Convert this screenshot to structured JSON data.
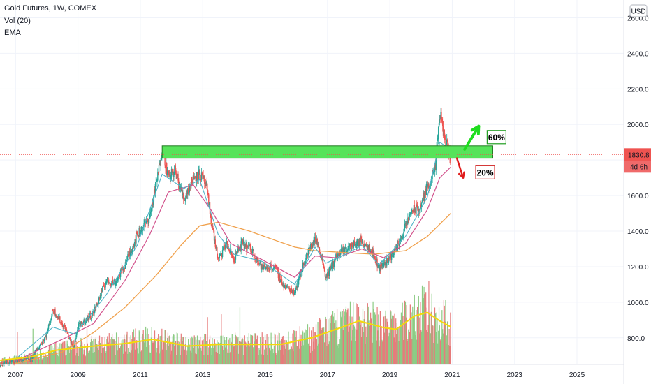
{
  "legend": {
    "title": "Gold Futures, 1W, COMEX",
    "volume": "Vol (20)",
    "ema": "EMA"
  },
  "currency_button": "USD",
  "price_tag": {
    "value": "1830.8",
    "countdown": "4d 6h"
  },
  "colors": {
    "up": "#26a69a",
    "down": "#ef5350",
    "vol_up": "#8ccb84",
    "vol_down": "#e67b7b",
    "ema_fast": "#4fb3c8",
    "ema_mid": "#d2528c",
    "ema_slow": "#f0a04b",
    "vol_ma": "#f5d90a",
    "zone_fill": "#57e35a",
    "arrow_up": "#1fdc1f",
    "arrow_down": "#e01b1b"
  },
  "annotations": {
    "up_label": "60%",
    "down_label": "20%"
  },
  "chart_data": {
    "type": "candlestick",
    "title": "Gold Futures, 1W, COMEX",
    "ylim": [
      650,
      2700
    ],
    "xlim": [
      2006.5,
      2026.5
    ],
    "ytick_labels": [
      "800.0",
      "1000.0",
      "1200.0",
      "1400.0",
      "1600.0",
      "1800.0",
      "2000.0",
      "2200.0",
      "2400.0",
      "2600.0"
    ],
    "yticks": [
      800,
      1000,
      1200,
      1400,
      1600,
      1800,
      2000,
      2200,
      2400,
      2600
    ],
    "xtick_labels": [
      "2007",
      "2009",
      "2011",
      "2013",
      "2015",
      "2017",
      "2019",
      "2021",
      "2023",
      "2025"
    ],
    "xticks": [
      2007,
      2009,
      2011,
      2013,
      2015,
      2017,
      2019,
      2021,
      2023,
      2025
    ],
    "price_path": [
      [
        2006.5,
        650
      ],
      [
        2007.0,
        670
      ],
      [
        2007.5,
        680
      ],
      [
        2008.0,
        820
      ],
      [
        2008.2,
        960
      ],
      [
        2008.6,
        850
      ],
      [
        2008.85,
        740
      ],
      [
        2009.0,
        860
      ],
      [
        2009.5,
        940
      ],
      [
        2009.9,
        1120
      ],
      [
        2010.2,
        1110
      ],
      [
        2010.5,
        1210
      ],
      [
        2010.9,
        1380
      ],
      [
        2011.3,
        1480
      ],
      [
        2011.6,
        1750
      ],
      [
        2011.7,
        1880
      ],
      [
        2011.9,
        1700
      ],
      [
        2012.1,
        1740
      ],
      [
        2012.4,
        1580
      ],
      [
        2012.7,
        1700
      ],
      [
        2012.9,
        1720
      ],
      [
        2013.1,
        1660
      ],
      [
        2013.3,
        1430
      ],
      [
        2013.5,
        1230
      ],
      [
        2013.75,
        1330
      ],
      [
        2014.0,
        1240
      ],
      [
        2014.25,
        1330
      ],
      [
        2014.6,
        1290
      ],
      [
        2014.9,
        1190
      ],
      [
        2015.3,
        1200
      ],
      [
        2015.6,
        1090
      ],
      [
        2015.95,
        1060
      ],
      [
        2016.3,
        1250
      ],
      [
        2016.6,
        1360
      ],
      [
        2016.8,
        1270
      ],
      [
        2016.95,
        1140
      ],
      [
        2017.3,
        1260
      ],
      [
        2017.7,
        1310
      ],
      [
        2018.1,
        1345
      ],
      [
        2018.4,
        1300
      ],
      [
        2018.65,
        1190
      ],
      [
        2018.9,
        1230
      ],
      [
        2019.2,
        1300
      ],
      [
        2019.5,
        1420
      ],
      [
        2019.7,
        1520
      ],
      [
        2019.95,
        1520
      ],
      [
        2020.2,
        1650
      ],
      [
        2020.45,
        1740
      ],
      [
        2020.6,
        2060
      ],
      [
        2020.75,
        1930
      ],
      [
        2020.85,
        1860
      ],
      [
        2020.95,
        1830.8
      ]
    ],
    "ema_fast": [
      [
        2007.0,
        680
      ],
      [
        2008.2,
        860
      ],
      [
        2008.9,
        820
      ],
      [
        2009.9,
        1040
      ],
      [
        2010.9,
        1320
      ],
      [
        2011.7,
        1720
      ],
      [
        2012.4,
        1640
      ],
      [
        2012.9,
        1690
      ],
      [
        2013.5,
        1380
      ],
      [
        2014.0,
        1270
      ],
      [
        2014.9,
        1230
      ],
      [
        2015.95,
        1100
      ],
      [
        2016.6,
        1310
      ],
      [
        2016.95,
        1220
      ],
      [
        2017.7,
        1280
      ],
      [
        2018.1,
        1320
      ],
      [
        2018.65,
        1210
      ],
      [
        2019.5,
        1370
      ],
      [
        2020.2,
        1590
      ],
      [
        2020.6,
        1900
      ],
      [
        2020.95,
        1860
      ]
    ],
    "ema_mid": [
      [
        2007.0,
        670
      ],
      [
        2008.6,
        800
      ],
      [
        2009.5,
        880
      ],
      [
        2010.5,
        1120
      ],
      [
        2011.3,
        1380
      ],
      [
        2011.9,
        1620
      ],
      [
        2012.7,
        1660
      ],
      [
        2013.3,
        1510
      ],
      [
        2013.9,
        1330
      ],
      [
        2014.9,
        1240
      ],
      [
        2015.95,
        1140
      ],
      [
        2016.6,
        1260
      ],
      [
        2017.3,
        1250
      ],
      [
        2018.1,
        1300
      ],
      [
        2018.8,
        1250
      ],
      [
        2019.5,
        1330
      ],
      [
        2020.2,
        1520
      ],
      [
        2020.6,
        1700
      ],
      [
        2020.95,
        1760
      ]
    ],
    "ema_slow": [
      [
        2007.0,
        655
      ],
      [
        2008.5,
        720
      ],
      [
        2009.5,
        830
      ],
      [
        2010.5,
        970
      ],
      [
        2011.5,
        1150
      ],
      [
        2012.3,
        1320
      ],
      [
        2012.9,
        1430
      ],
      [
        2013.5,
        1450
      ],
      [
        2014.5,
        1400
      ],
      [
        2015.3,
        1350
      ],
      [
        2015.95,
        1310
      ],
      [
        2016.6,
        1290
      ],
      [
        2017.5,
        1280
      ],
      [
        2018.5,
        1270
      ],
      [
        2019.5,
        1290
      ],
      [
        2020.2,
        1370
      ],
      [
        2020.95,
        1500
      ]
    ],
    "volume_ma": [
      [
        2006.5,
        0.05
      ],
      [
        2007.5,
        0.09
      ],
      [
        2008.3,
        0.17
      ],
      [
        2009.5,
        0.22
      ],
      [
        2010.5,
        0.25
      ],
      [
        2011.4,
        0.3
      ],
      [
        2012.5,
        0.22
      ],
      [
        2013.5,
        0.24
      ],
      [
        2014.5,
        0.24
      ],
      [
        2015.5,
        0.24
      ],
      [
        2016.5,
        0.32
      ],
      [
        2017.5,
        0.45
      ],
      [
        2018.0,
        0.52
      ],
      [
        2018.8,
        0.44
      ],
      [
        2019.2,
        0.42
      ],
      [
        2019.8,
        0.58
      ],
      [
        2020.2,
        0.62
      ],
      [
        2020.6,
        0.52
      ],
      [
        2020.95,
        0.45
      ]
    ],
    "resistance_zone": {
      "x": [
        2011.7,
        2022.3
      ],
      "y": [
        1810,
        1880
      ]
    },
    "last_price": 1830.8,
    "arrows": [
      {
        "label": "60%",
        "direction": "up",
        "x": [
          2021.4,
          2021.85
        ],
        "y": [
          1860,
          1990
        ]
      },
      {
        "label": "20%",
        "direction": "down",
        "x": [
          2021.15,
          2021.35
        ],
        "y": [
          1810,
          1700
        ]
      }
    ]
  }
}
